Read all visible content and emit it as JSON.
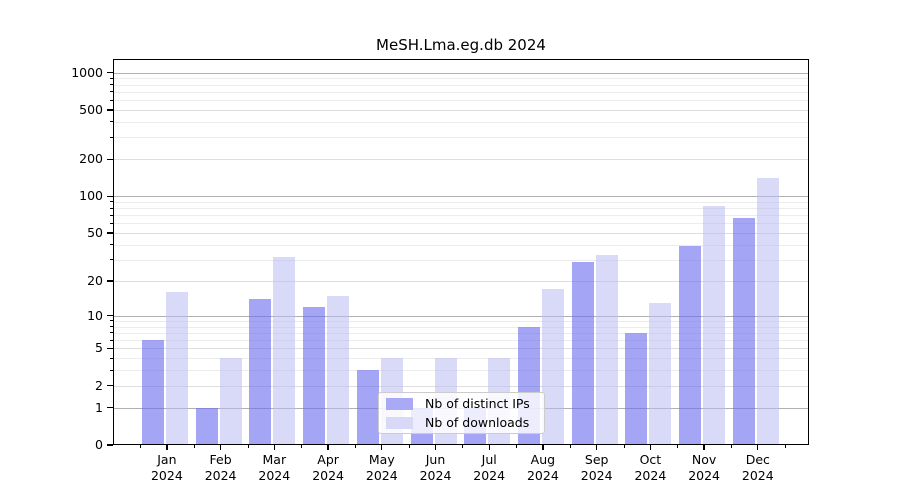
{
  "chart_data": {
    "type": "bar",
    "title": "MeSH.Lma.eg.db 2024",
    "categories": [
      "Jan",
      "Feb",
      "Mar",
      "Apr",
      "May",
      "Jun",
      "Jul",
      "Aug",
      "Sep",
      "Oct",
      "Nov",
      "Dec"
    ],
    "x_tick_year": "2024",
    "series": [
      {
        "name": "Nb of distinct IPs",
        "color": "#a9a9f5",
        "bar_fill": "rgba(110,110,240,0.62)",
        "values": [
          6,
          1,
          14,
          12,
          3,
          1,
          1,
          8,
          29,
          7,
          39,
          66
        ]
      },
      {
        "name": "Nb of downloads",
        "color": "#d9d9f7",
        "bar_fill": "rgba(185,185,242,0.55)",
        "values": [
          16,
          4,
          32,
          15,
          4,
          4,
          4,
          17,
          33,
          13,
          84,
          140
        ]
      }
    ],
    "yscale": "log1p",
    "y_ticks": [
      0,
      1,
      2,
      5,
      10,
      20,
      50,
      100,
      200,
      500,
      1000
    ],
    "y_major_gridlines": [
      1,
      10,
      100,
      1000
    ],
    "ylim": [
      0,
      1287
    ],
    "grid": "horizontal major and minor, drawn light gray",
    "legend": {
      "position": "inside-bottom-center",
      "items": [
        "Nb of distinct IPs",
        "Nb of downloads"
      ]
    },
    "colors": {
      "background": "#ffffff",
      "axis": "#000000",
      "text": "#000000",
      "grid_major": "#b0b0b0",
      "grid_minor": "#ececec",
      "legend_border": "#cccccc",
      "legend_background": "rgba(255,255,255,0.8)"
    }
  }
}
